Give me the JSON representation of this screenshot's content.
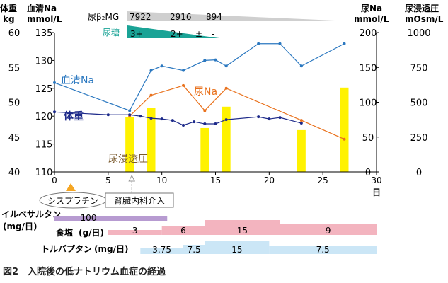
{
  "chart_data": {
    "type": "line",
    "x": {
      "label": "日",
      "range": [
        0,
        30
      ],
      "ticks": [
        "0",
        "5",
        "10",
        "15",
        "20",
        "25",
        "30"
      ]
    },
    "axes_headers": {
      "weight": [
        "体重",
        "kg"
      ],
      "sodium": [
        "血清Na",
        "mmol/L"
      ],
      "urine_na": [
        "尿Na",
        "mmol/L"
      ],
      "urine_osm": [
        "尿浸透圧",
        "mOsm/L"
      ]
    },
    "axes": {
      "weight": {
        "range": [
          40,
          60
        ],
        "ticks": [
          "40",
          "45",
          "50",
          "55",
          "60"
        ]
      },
      "sodium": {
        "range": [
          110,
          135
        ],
        "ticks": [
          "110",
          "115",
          "120",
          "125",
          "130",
          "135"
        ]
      },
      "urine_na": {
        "range": [
          0,
          200
        ],
        "ticks": [
          "0",
          "50",
          "100",
          "150",
          "200"
        ]
      },
      "urine_osm": {
        "range": [
          0,
          1000
        ],
        "ticks": [
          "0",
          "250",
          "500",
          "750",
          "1000"
        ]
      }
    },
    "series": [
      {
        "name": "血清Na",
        "axis": "sodium",
        "color": "#2b78c0",
        "x": [
          0,
          7,
          9,
          10,
          12,
          14,
          15,
          16,
          19,
          21,
          23,
          27
        ],
        "values": [
          126,
          121,
          128.2,
          129,
          128.2,
          130,
          130.1,
          129,
          133,
          133,
          129,
          133
        ]
      },
      {
        "name": "尿Na",
        "axis": "urine_na",
        "color": "#e9711c",
        "x": [
          7,
          9,
          12,
          14,
          16,
          23,
          27
        ],
        "values": [
          80,
          110,
          124,
          88,
          120,
          74,
          47
        ]
      },
      {
        "name": "体重",
        "axis": "weight",
        "color": "#1d2a8a",
        "x": [
          0,
          5,
          7,
          8,
          9,
          10,
          11,
          12,
          13,
          14,
          15,
          16,
          19,
          20,
          21,
          23
        ],
        "values": [
          48.6,
          48.2,
          48.2,
          48.0,
          47.7,
          47.6,
          47.4,
          46.7,
          47.2,
          46.9,
          46.9,
          47.5,
          47.9,
          47.6,
          47.8,
          47.0
        ]
      },
      {
        "name": "尿浸透圧",
        "type": "bar",
        "axis": "urine_osm",
        "color": "#fff200",
        "x": [
          7,
          9,
          14,
          16,
          23,
          27
        ],
        "values": [
          395,
          458,
          315,
          468,
          300,
          605
        ]
      }
    ],
    "top_labels": {
      "b2mg": {
        "label": "尿β₂MG",
        "values": [
          "7922",
          "2916",
          "894"
        ]
      },
      "sugar": {
        "label": "尿糖",
        "values": [
          "3+",
          "2+",
          "±",
          "-"
        ]
      }
    },
    "events": {
      "cisplatin": "シスプラチン",
      "nephro": "腎臓内科介入"
    },
    "timelines": [
      {
        "name": "イルベサルタン",
        "unit": "(mg/日)",
        "color": "#b79bd1",
        "segments": [
          {
            "from": 0,
            "to": 10.5,
            "value": "100"
          }
        ]
      },
      {
        "name": "食塩",
        "unit": "(g/日)",
        "color": "#f3b4bf",
        "segments": [
          {
            "from": 5,
            "to": 10,
            "value": "3"
          },
          {
            "from": 10,
            "to": 14,
            "value": "6"
          },
          {
            "from": 14,
            "to": 21,
            "value": "15"
          },
          {
            "from": 21,
            "to": 30,
            "value": "9"
          }
        ]
      },
      {
        "name": "トルバプタン",
        "unit": "(mg/日)",
        "color": "#cbe6f6",
        "segments": [
          {
            "from": 8,
            "to": 12,
            "value": "3.75"
          },
          {
            "from": 12,
            "to": 14,
            "value": "7.5"
          },
          {
            "from": 14,
            "to": 20,
            "value": "15"
          },
          {
            "from": 20,
            "to": 30,
            "value": "7.5"
          }
        ]
      }
    ],
    "caption": "図2　入院後の低ナトリウム血症の経過"
  }
}
